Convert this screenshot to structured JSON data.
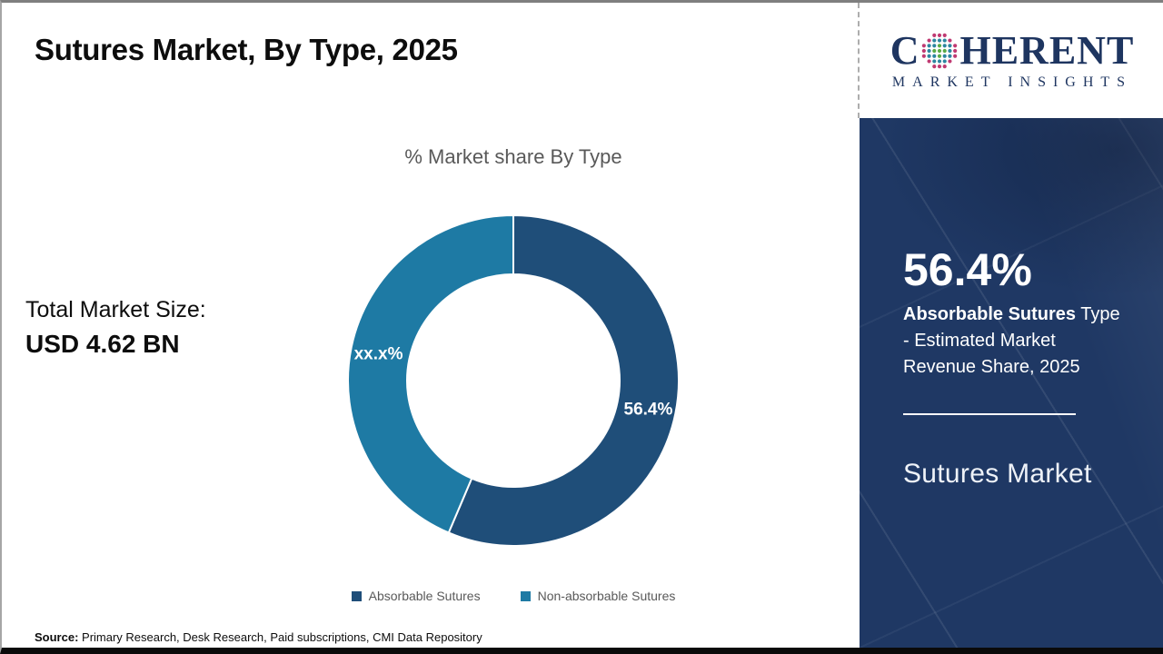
{
  "header": {
    "title": "Sutures Market, By Type, 2025"
  },
  "logo": {
    "line1_prefix": "C",
    "line1_suffix": "HERENT",
    "line2": "MARKET INSIGHTS",
    "brand_navy": "#1e3560",
    "globe_colors": [
      "#5aab46",
      "#2e86a0",
      "#c03a72"
    ]
  },
  "left_stats": {
    "label": "Total Market Size:",
    "value": "USD 4.62 BN"
  },
  "chart_data": {
    "type": "pie",
    "donut": true,
    "title": "% Market share By Type",
    "categories": [
      "Absorbable Sutures",
      "Non-absorbable Sutures"
    ],
    "values": [
      56.4,
      43.6
    ],
    "slice_labels": [
      "56.4%",
      "xx.x%"
    ],
    "colors": [
      "#1f4e79",
      "#1e7aa4"
    ],
    "start_angle_deg": 0,
    "legend_position": "bottom"
  },
  "side_panel": {
    "stat_value": "56.4%",
    "desc_bold": "Absorbable Sutures",
    "desc_rest": " Type - Estimated Market Revenue Share, 2025",
    "footer_title": "Sutures Market",
    "accent_bg": "#1f3864"
  },
  "footer": {
    "source_label": "Source:",
    "source_text": " Primary Research, Desk Research, Paid subscriptions, CMI Data Repository"
  }
}
